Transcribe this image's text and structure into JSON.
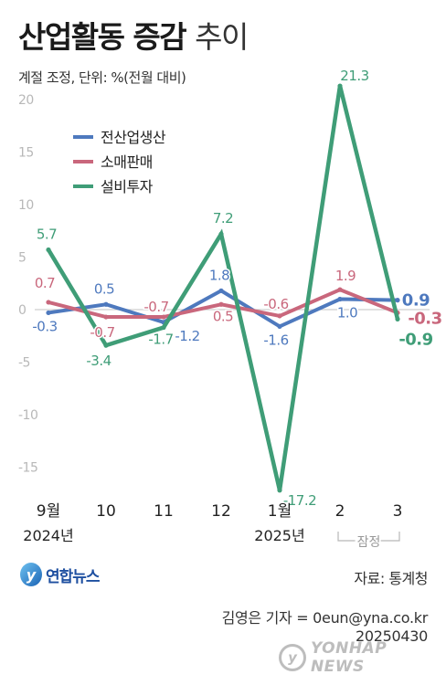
{
  "header": {
    "title_bold": "산업활동 증감",
    "title_light": "추이",
    "subtitle": "계절 조정, 단위: %(전월 대비)"
  },
  "colors": {
    "series1": "#4e79be",
    "series2": "#c9677c",
    "series3": "#3f9d77",
    "axis_text": "#b8b8b8",
    "gridline": "#cfcfcf"
  },
  "chart_data": {
    "type": "line",
    "categories": [
      "9월",
      "10",
      "11",
      "12",
      "1월",
      "2",
      "3"
    ],
    "category_sublabels": [
      "2024년",
      "",
      "",
      "",
      "2025년",
      "",
      ""
    ],
    "preliminary_note": "잠정",
    "ylim": [
      -20,
      23
    ],
    "yticks": [
      20,
      15,
      10,
      5,
      0,
      -5,
      -10,
      -15
    ],
    "grid": false,
    "zero_line": true,
    "legend_position": "top-left",
    "series": [
      {
        "name": "전산업생산",
        "values": [
          -0.3,
          0.5,
          -1.2,
          1.8,
          -1.6,
          1.0,
          0.9
        ],
        "labels": [
          "-0.3",
          "0.5",
          "-1.2",
          "1.8",
          "-1.6",
          "1.0",
          "0.9"
        ]
      },
      {
        "name": "소매판매",
        "values": [
          0.7,
          -0.7,
          -0.7,
          0.5,
          -0.6,
          1.9,
          -0.3
        ],
        "labels": [
          "0.7",
          "-0.7",
          "-0.7",
          "0.5",
          "-0.6",
          "1.9",
          "-0.3"
        ]
      },
      {
        "name": "설비투자",
        "values": [
          5.7,
          -3.4,
          -1.7,
          7.2,
          -17.2,
          21.3,
          -0.9
        ],
        "labels": [
          "5.7",
          "-3.4",
          "-1.7",
          "7.2",
          "-17.2",
          "21.3",
          "-0.9"
        ]
      }
    ]
  },
  "footer": {
    "logo_text": "연합뉴스",
    "source": "자료: 통계청",
    "reporter": "김영은 기자 = 0eun@yna.co.kr",
    "date": "20250430",
    "watermark": "YONHAP NEWS"
  }
}
